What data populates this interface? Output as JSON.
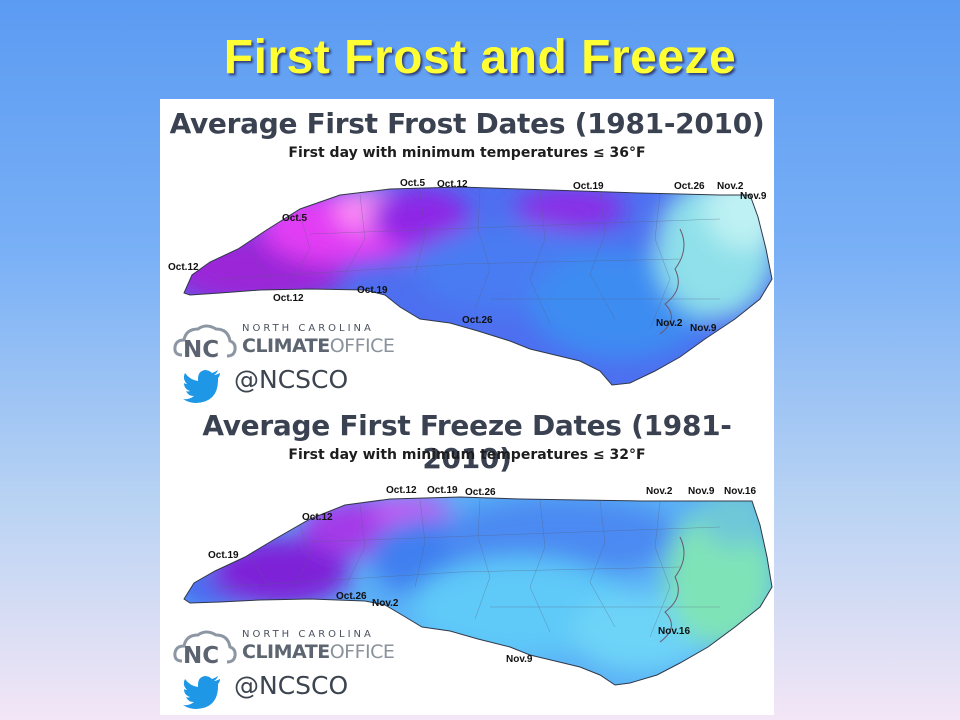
{
  "slide": {
    "title": "First Frost and Freeze"
  },
  "maps": [
    {
      "title": "Average First Frost Dates (1981-2010)",
      "subtitle": "First day with minimum temperatures ≤ 36°F",
      "labels": [
        "Oct.5",
        "Oct.12",
        "Oct.19",
        "Oct.26",
        "Nov.2",
        "Nov.9",
        "Oct.5",
        "Oct.12",
        "Oct.12",
        "Oct.19",
        "Oct.26",
        "Nov.2",
        "Nov.9"
      ],
      "colors": {
        "mountains": "#e040ff",
        "ridge": "#ff66ff",
        "piedmont": "#4a73f0",
        "coastal": "#3e8cf2",
        "east": "#8fe0ea",
        "north": "#9b2be0"
      }
    },
    {
      "title": "Average First Freeze Dates (1981-2010)",
      "subtitle": "First day with minimum temperatures ≤ 32°F",
      "labels": [
        "Oct.12",
        "Oct.19",
        "Oct.26",
        "Nov.2",
        "Nov.9",
        "Nov.16",
        "Oct.12",
        "Oct.19",
        "Oct.26",
        "Nov.2",
        "Nov.16",
        "Nov.9"
      ],
      "colors": {
        "mountains": "#8a2be2",
        "ridge": "#b64cf0",
        "piedmont": "#5aa6f5",
        "coastal": "#5fcdf8",
        "east": "#7fe3b8",
        "north": "#3d7ef0"
      }
    }
  ],
  "logo": {
    "line1": "NORTH CAROLINA",
    "line2_bold": "CLIMATE",
    "line2_rest": "OFFICE",
    "handle": "@NCSCO",
    "icons": [
      "cloud-nc-icon",
      "twitter-bird-icon"
    ]
  }
}
